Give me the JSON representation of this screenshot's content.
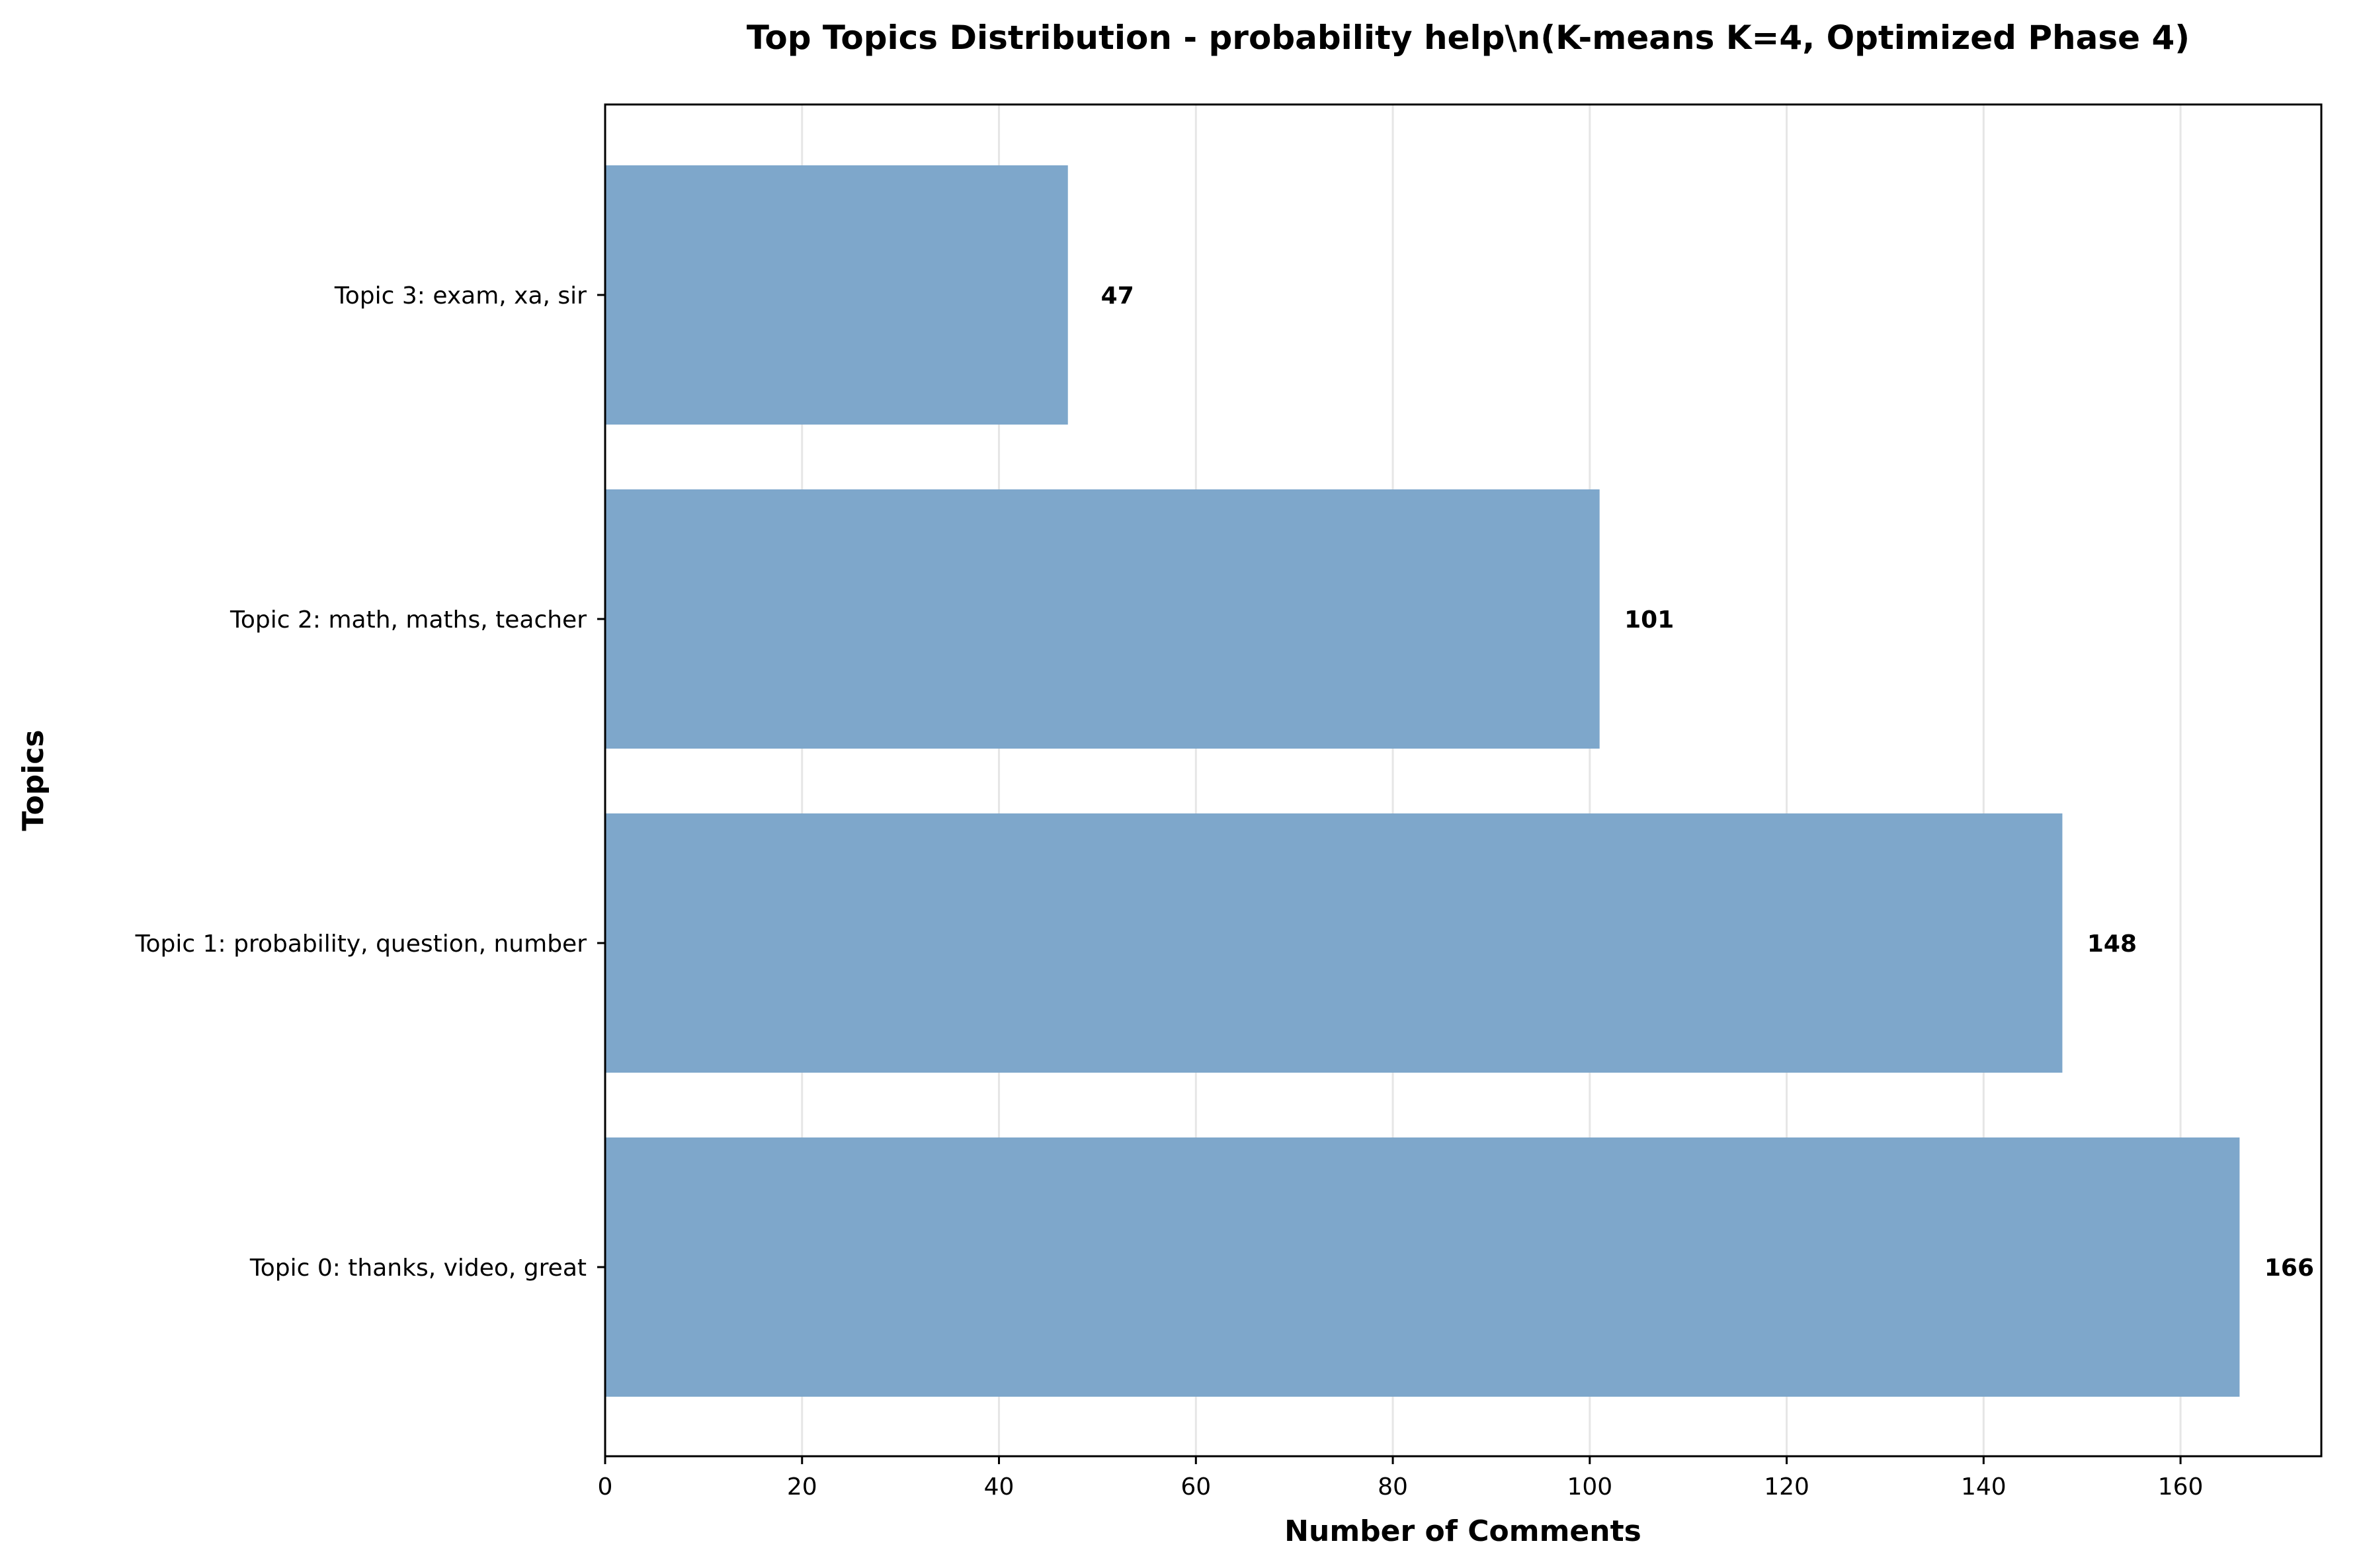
{
  "chart_data": {
    "type": "bar",
    "orientation": "horizontal",
    "title": "Top Topics Distribution - probability help\\n(K-means K=4, Optimized Phase 4)",
    "xlabel": "Number of Comments",
    "ylabel": "Topics",
    "categories": [
      "Topic 0: thanks, video, great",
      "Topic 1: probability, question, number",
      "Topic 2: math, maths, teacher",
      "Topic 3: exam, xa, sir"
    ],
    "values": [
      166,
      148,
      101,
      47
    ],
    "value_labels": [
      "166",
      "148",
      "101",
      "47"
    ],
    "xlim": [
      0,
      174.3
    ],
    "xticks": [
      0,
      20,
      40,
      60,
      80,
      100,
      120,
      140,
      160
    ],
    "xtick_labels": [
      "0",
      "20",
      "40",
      "60",
      "80",
      "100",
      "120",
      "140",
      "160"
    ],
    "grid": "x",
    "legend": "none",
    "bar_color": "#7ea7cb",
    "grid_color": "#e6e6e6"
  }
}
